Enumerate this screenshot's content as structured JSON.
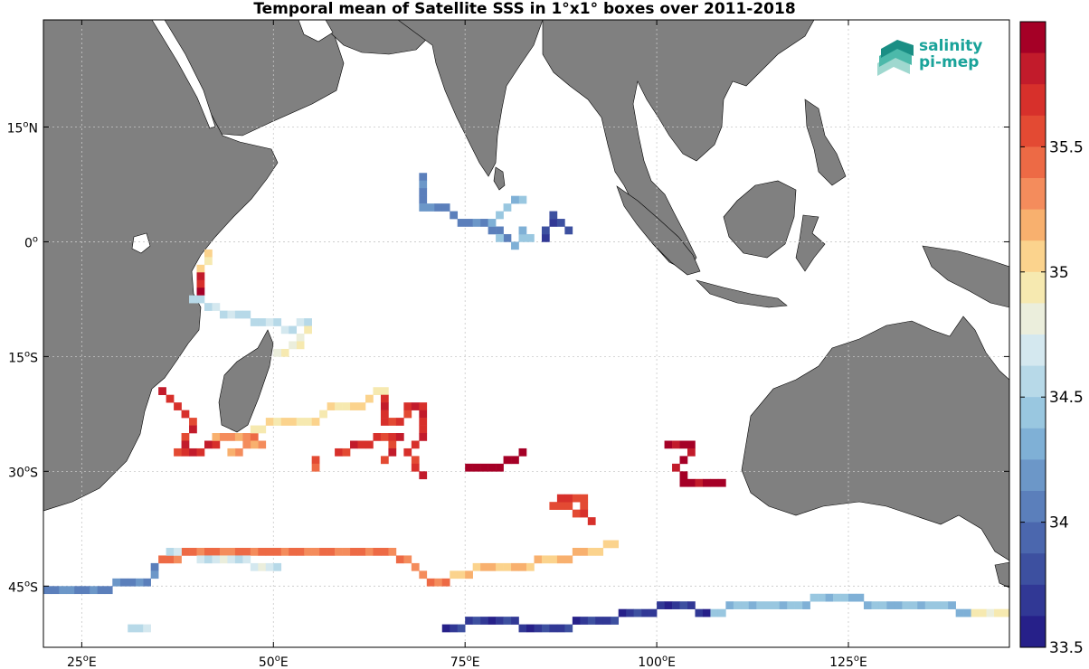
{
  "title": "Temporal mean of Satellite SSS in 1°x1° boxes over 2011-2018",
  "logo": {
    "line1": "salinity",
    "line2": "pi-mep",
    "color": "#1aa39a"
  },
  "lon_ticks": [
    {
      "deg": "25",
      "sup": "o",
      "dir": "E"
    },
    {
      "deg": "50",
      "sup": "o",
      "dir": "E"
    },
    {
      "deg": "75",
      "sup": "o",
      "dir": "E"
    },
    {
      "deg": "100",
      "sup": "o",
      "dir": "E"
    },
    {
      "deg": "125",
      "sup": "o",
      "dir": "E"
    }
  ],
  "lat_ticks": [
    {
      "deg": "15",
      "sup": "o",
      "dir": "N"
    },
    {
      "deg": "0",
      "sup": "o",
      "dir": ""
    },
    {
      "deg": "15",
      "sup": "o",
      "dir": "S"
    },
    {
      "deg": "30",
      "sup": "o",
      "dir": "S"
    },
    {
      "deg": "45",
      "sup": "o",
      "dir": "S"
    }
  ],
  "colorbar": {
    "min": 33.5,
    "max": 36.0,
    "labels": [
      "35.5",
      "35",
      "34.5",
      "34",
      "33.5"
    ],
    "colors": [
      "#a50026",
      "#c21b2b",
      "#d7302b",
      "#e34a33",
      "#ed6a45",
      "#f48c5c",
      "#f8b06e",
      "#fbd38d",
      "#f6e9b0",
      "#ebeedc",
      "#d4e8ef",
      "#b7d9e8",
      "#99c7e0",
      "#7fb0d6",
      "#6c97c8",
      "#5b7fbb",
      "#4b67ae",
      "#3d50a0",
      "#313895",
      "#262089"
    ]
  },
  "map": {
    "ocean_color": "#ffffff",
    "land_color": "#808080",
    "lon_range": [
      20,
      146
    ],
    "lat_range": [
      -53,
      29
    ],
    "grid": true
  },
  "chart_data": {
    "type": "heatmap",
    "title": "Temporal mean of Satellite SSS in 1°x1° boxes over 2011-2018",
    "tracks": [
      {
        "segments": [
          [
            [
              69,
              8
            ],
            [
              69,
              4
            ],
            [
              72,
              4
            ],
            [
              74,
              2
            ],
            [
              77,
              2
            ],
            [
              78,
              1
            ],
            [
              80,
              0
            ]
          ]
        ],
        "value": 34.1
      },
      {
        "segments": [
          [
            [
              82,
              5
            ],
            [
              80,
              4
            ],
            [
              78,
              2
            ],
            [
              79,
              0
            ],
            [
              81,
              -1
            ],
            [
              82,
              1
            ],
            [
              83,
              0
            ]
          ]
        ],
        "value": 34.4
      },
      {
        "segments": [
          [
            [
              85,
              0
            ],
            [
              86,
              3
            ],
            [
              88,
              1
            ]
          ]
        ],
        "value": 33.7
      },
      {
        "segments": [
          [
            [
              41,
              -2
            ],
            [
              40,
              -4
            ]
          ]
        ],
        "value": 35.0
      },
      {
        "segments": [
          [
            [
              40,
              -5
            ],
            [
              40,
              -7
            ]
          ]
        ],
        "value": 35.8
      },
      {
        "segments": [
          [
            [
              39,
              -8
            ],
            [
              41,
              -9
            ],
            [
              44,
              -10
            ],
            [
              48,
              -11
            ],
            [
              52,
              -12
            ],
            [
              54,
              -11
            ]
          ]
        ],
        "value": 34.6
      },
      {
        "segments": [
          [
            [
              54,
              -11
            ],
            [
              53,
              -14
            ],
            [
              50,
              -15
            ]
          ]
        ],
        "value": 34.8
      },
      {
        "segments": [
          [
            [
              35,
              -20
            ],
            [
              37,
              -22
            ],
            [
              39,
              -24
            ],
            [
              38,
              -26
            ],
            [
              37,
              -28
            ],
            [
              39,
              -28
            ],
            [
              42,
              -27
            ]
          ]
        ],
        "value": 35.7
      },
      {
        "segments": [
          [
            [
              42,
              -26
            ],
            [
              46,
              -26
            ],
            [
              48,
              -27
            ],
            [
              44,
              -28
            ]
          ]
        ],
        "value": 35.3
      },
      {
        "segments": [
          [
            [
              47,
              -25
            ],
            [
              50,
              -24
            ],
            [
              55,
              -24
            ],
            [
              57,
              -22
            ],
            [
              61,
              -22
            ],
            [
              63,
              -20
            ],
            [
              64,
              -20
            ]
          ]
        ],
        "value": 35.0
      },
      {
        "segments": [
          [
            [
              64,
              -20
            ],
            [
              64,
              -24
            ],
            [
              66,
              -24
            ],
            [
              67,
              -22
            ],
            [
              69,
              -22
            ],
            [
              69,
              -26
            ],
            [
              67,
              -28
            ],
            [
              68,
              -30
            ],
            [
              69,
              -31
            ]
          ]
        ],
        "value": 35.7
      },
      {
        "segments": [
          [
            [
              58,
              -28
            ],
            [
              61,
              -27
            ],
            [
              64,
              -26
            ],
            [
              66,
              -26
            ],
            [
              64,
              -29
            ]
          ]
        ],
        "value": 35.7
      },
      {
        "segments": [
          [
            [
              55,
              -29
            ],
            [
              55,
              -30
            ]
          ]
        ],
        "value": 35.5
      },
      {
        "segments": [
          [
            [
              75,
              -30
            ],
            [
              78,
              -30
            ],
            [
              81,
              -29
            ],
            [
              82,
              -28
            ]
          ]
        ],
        "value": 36.0
      },
      {
        "segments": [
          [
            [
              101,
              -27
            ],
            [
              104,
              -27
            ],
            [
              104,
              -28
            ],
            [
              102,
              -30
            ],
            [
              103,
              -32
            ],
            [
              108,
              -32
            ]
          ]
        ],
        "value": 35.9
      },
      {
        "segments": [
          [
            [
              88,
              -35
            ],
            [
              86,
              -35
            ],
            [
              88,
              -34
            ],
            [
              90,
              -34
            ],
            [
              89,
              -36
            ],
            [
              91,
              -37
            ]
          ]
        ],
        "value": 35.6
      },
      {
        "segments": [
          [
            [
              35,
              -42
            ],
            [
              40,
              -41
            ],
            [
              45,
              -41
            ],
            [
              55,
              -41
            ],
            [
              65,
              -41
            ],
            [
              68,
              -43
            ],
            [
              70,
              -45
            ],
            [
              72,
              -45
            ]
          ]
        ],
        "value": 35.4
      },
      {
        "segments": [
          [
            [
              73,
              -44
            ],
            [
              78,
              -43
            ],
            [
              82,
              -43
            ],
            [
              86,
              -42
            ],
            [
              91,
              -41
            ],
            [
              94,
              -40
            ]
          ]
        ],
        "value": 35.1
      },
      {
        "segments": [
          [
            [
              34,
              -43
            ],
            [
              33,
              -45
            ],
            [
              30,
              -45
            ],
            [
              27,
              -46
            ],
            [
              24,
              -46
            ],
            [
              20,
              -46
            ]
          ]
        ],
        "value": 34.1
      },
      {
        "segments": [
          [
            [
              36,
              -41
            ],
            [
              43,
              -42
            ],
            [
              50,
              -43
            ]
          ]
        ],
        "value": 34.7
      },
      {
        "segments": [
          [
            [
              31,
              -51
            ],
            [
              33,
              -51
            ]
          ]
        ],
        "value": 34.6
      },
      {
        "segments": [
          [
            [
              72,
              -51
            ],
            [
              78,
              -50
            ],
            [
              85,
              -51
            ],
            [
              92,
              -50
            ],
            [
              98,
              -49
            ],
            [
              102,
              -48
            ],
            [
              106,
              -49
            ]
          ]
        ],
        "value": 33.7
      },
      {
        "segments": [
          [
            [
              106,
              -49
            ],
            [
              112,
              -48
            ],
            [
              118,
              -48
            ],
            [
              122,
              -47
            ],
            [
              130,
              -48
            ],
            [
              136,
              -48
            ],
            [
              140,
              -49
            ]
          ]
        ],
        "value": 34.4
      },
      {
        "segments": [
          [
            [
              140,
              -49
            ],
            [
              146,
              -49
            ]
          ]
        ],
        "value": 34.9
      }
    ]
  }
}
